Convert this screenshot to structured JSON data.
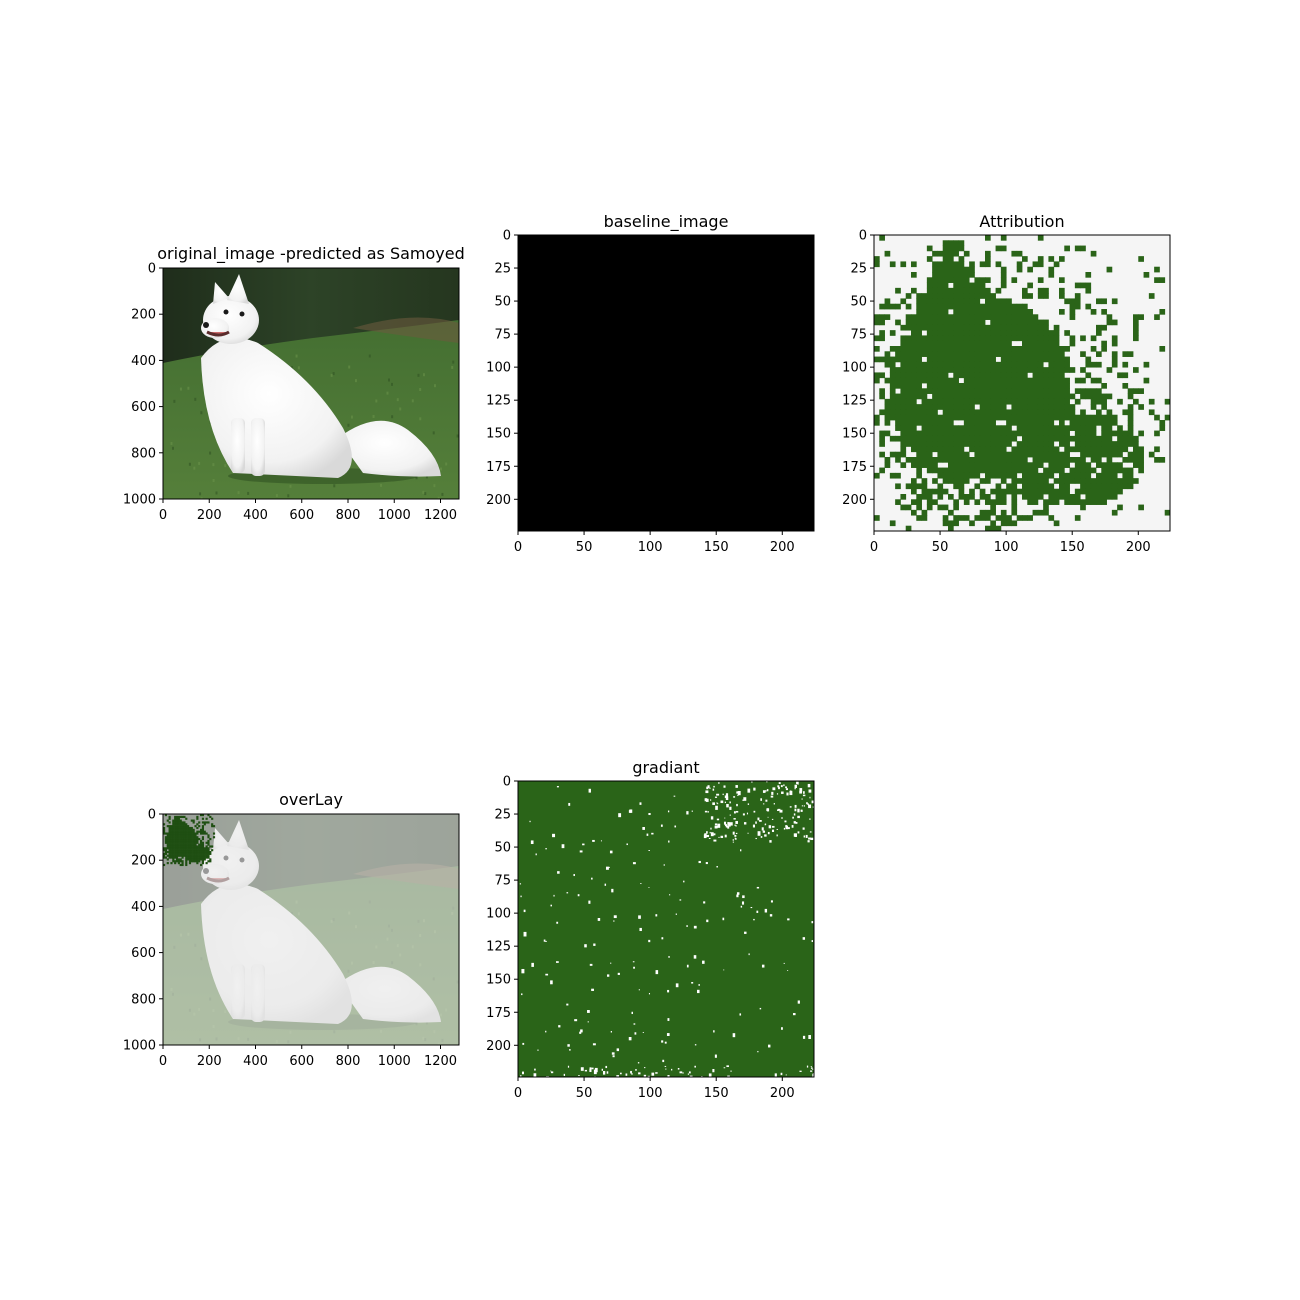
{
  "figure": {
    "background": "#ffffff",
    "subplot_count": 5
  },
  "colors": {
    "attribution_green": "#2a6418",
    "attribution_background": "#f5f5f5",
    "baseline_fill": "#000000",
    "grass_green": "#466f34",
    "hedge_dark": "#23331f",
    "dog_white": "#f4f4f4",
    "overlay_tint": "rgba(230,230,230,0.62)"
  },
  "chart_data": [
    {
      "id": "original",
      "type": "heatmap",
      "content": "photo of a white dog sitting on grass",
      "title": "original_image -predicted as Samoyed",
      "xlim": [
        0,
        1280
      ],
      "ylim": [
        1000,
        0
      ],
      "xticks": [
        0,
        200,
        400,
        600,
        800,
        1000,
        1200
      ],
      "yticks": [
        0,
        200,
        400,
        600,
        800,
        1000
      ]
    },
    {
      "id": "baseline",
      "type": "heatmap",
      "content": "uniform black image",
      "title": "baseline_image",
      "xlim": [
        0,
        224
      ],
      "ylim": [
        224,
        0
      ],
      "xticks": [
        0,
        50,
        100,
        150,
        200
      ],
      "yticks": [
        0,
        25,
        50,
        75,
        100,
        125,
        150,
        175,
        200
      ]
    },
    {
      "id": "attribution",
      "type": "heatmap",
      "content": "binary attribution mask, green over light grey",
      "title": "Attribution",
      "xlim": [
        0,
        224
      ],
      "ylim": [
        224,
        0
      ],
      "xticks": [
        0,
        50,
        100,
        150,
        200
      ],
      "yticks": [
        0,
        25,
        50,
        75,
        100,
        125,
        150,
        175,
        200
      ]
    },
    {
      "id": "overlay",
      "type": "heatmap",
      "content": "faded dog photo with the 224x224 attribution mask in the top-left corner",
      "title": "overLay",
      "xlim": [
        0,
        1280
      ],
      "ylim": [
        1000,
        0
      ],
      "xticks": [
        0,
        200,
        400,
        600,
        800,
        1000,
        1200
      ],
      "yticks": [
        0,
        200,
        400,
        600,
        800,
        1000
      ]
    },
    {
      "id": "gradient",
      "type": "heatmap",
      "content": "mostly green gradient mask with sparse white specks",
      "title": "gradiant",
      "xlim": [
        0,
        224
      ],
      "ylim": [
        224,
        0
      ],
      "xticks": [
        0,
        50,
        100,
        150,
        200
      ],
      "yticks": [
        0,
        25,
        50,
        75,
        100,
        125,
        150,
        175,
        200
      ]
    }
  ]
}
